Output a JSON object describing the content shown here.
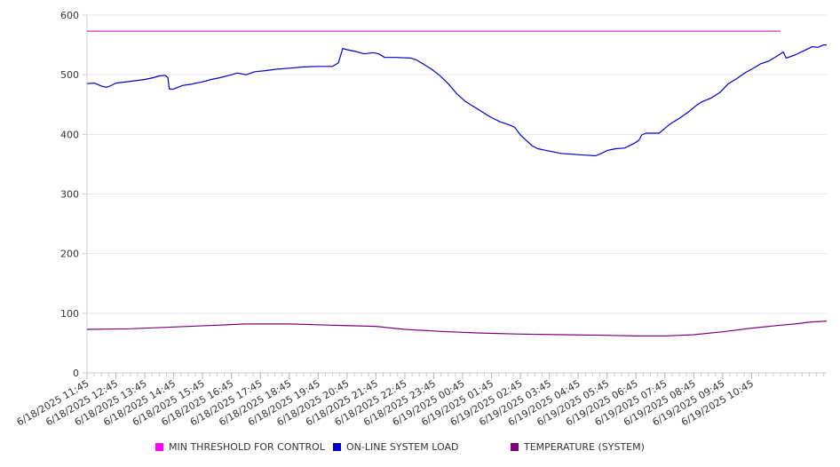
{
  "chart_data": {
    "type": "line",
    "title": "",
    "xlabel": "",
    "ylabel": "",
    "ylim": [
      0,
      600
    ],
    "y_ticks": [
      0,
      100,
      200,
      300,
      400,
      500,
      600
    ],
    "grid": "horizontal",
    "legend_position": "bottom",
    "x_tick_labels": [
      "6/18/2025 11:45",
      "6/18/2025 12:45",
      "6/18/2025 13:45",
      "6/18/2025 14:45",
      "6/18/2025 15:45",
      "6/18/2025 16:45",
      "6/18/2025 17:45",
      "6/18/2025 18:45",
      "6/18/2025 19:45",
      "6/18/2025 20:45",
      "6/18/2025 21:45",
      "6/18/2025 22:45",
      "6/18/2025 23:45",
      "6/19/2025 00:45",
      "6/19/2025 01:45",
      "6/19/2025 02:45",
      "6/19/2025 03:45",
      "6/19/2025 04:45",
      "6/19/2025 05:45",
      "6/19/2025 06:45",
      "6/19/2025 07:45",
      "6/19/2025 08:45",
      "6/19/2025 09:45",
      "6/19/2025 10:45"
    ],
    "x_hours_start": "6/18/2025 11:45",
    "series": [
      {
        "name": "MIN THRESHOLD FOR CONTROL",
        "color": "#cc33cc",
        "points": [
          [
            0,
            573
          ],
          [
            24,
            573
          ]
        ]
      },
      {
        "name": "ON-LINE SYSTEM LOAD",
        "color": "#0000cc",
        "points": [
          [
            0,
            485
          ],
          [
            0.25,
            486
          ],
          [
            0.5,
            481
          ],
          [
            0.65,
            479
          ],
          [
            0.8,
            481
          ],
          [
            1.0,
            486
          ],
          [
            1.5,
            489
          ],
          [
            2.0,
            492
          ],
          [
            2.3,
            495
          ],
          [
            2.5,
            498
          ],
          [
            2.7,
            499
          ],
          [
            2.8,
            495
          ],
          [
            2.85,
            476
          ],
          [
            3.0,
            476
          ],
          [
            3.3,
            482
          ],
          [
            3.6,
            484
          ],
          [
            4.0,
            488
          ],
          [
            4.3,
            492
          ],
          [
            4.6,
            495
          ],
          [
            5.0,
            500
          ],
          [
            5.2,
            503
          ],
          [
            5.5,
            500
          ],
          [
            5.8,
            505
          ],
          [
            6.2,
            507
          ],
          [
            6.5,
            509
          ],
          [
            7.0,
            511
          ],
          [
            7.5,
            513
          ],
          [
            8.0,
            514
          ],
          [
            8.5,
            514
          ],
          [
            8.7,
            520
          ],
          [
            8.85,
            544
          ],
          [
            9.0,
            542
          ],
          [
            9.3,
            539
          ],
          [
            9.6,
            535
          ],
          [
            9.9,
            537
          ],
          [
            10.1,
            535
          ],
          [
            10.3,
            529
          ],
          [
            10.7,
            529
          ],
          [
            11.2,
            528
          ],
          [
            11.4,
            525
          ],
          [
            11.6,
            519
          ],
          [
            11.9,
            510
          ],
          [
            12.2,
            499
          ],
          [
            12.5,
            485
          ],
          [
            12.8,
            468
          ],
          [
            13.1,
            455
          ],
          [
            13.4,
            446
          ],
          [
            13.7,
            437
          ],
          [
            14.0,
            428
          ],
          [
            14.3,
            421
          ],
          [
            14.6,
            416
          ],
          [
            14.8,
            412
          ],
          [
            15.0,
            399
          ],
          [
            15.2,
            390
          ],
          [
            15.4,
            381
          ],
          [
            15.6,
            376
          ],
          [
            15.8,
            374
          ],
          [
            16.1,
            371
          ],
          [
            16.4,
            368
          ],
          [
            16.7,
            367
          ],
          [
            17.0,
            366
          ],
          [
            17.3,
            365
          ],
          [
            17.6,
            364
          ],
          [
            17.8,
            368
          ],
          [
            18.0,
            373
          ],
          [
            18.3,
            376
          ],
          [
            18.6,
            377
          ],
          [
            18.9,
            384
          ],
          [
            19.1,
            390
          ],
          [
            19.2,
            399
          ],
          [
            19.35,
            402
          ],
          [
            19.6,
            402
          ],
          [
            19.8,
            402
          ],
          [
            20.0,
            410
          ],
          [
            20.2,
            418
          ],
          [
            20.5,
            427
          ],
          [
            20.8,
            437
          ],
          [
            21.1,
            449
          ],
          [
            21.3,
            455
          ],
          [
            21.6,
            461
          ],
          [
            21.9,
            470
          ],
          [
            22.2,
            485
          ],
          [
            22.5,
            494
          ],
          [
            22.8,
            504
          ],
          [
            23.1,
            512
          ],
          [
            23.3,
            518
          ],
          [
            23.6,
            523
          ],
          [
            23.9,
            532
          ],
          [
            24.1,
            538
          ],
          [
            24.2,
            528
          ],
          [
            24.5,
            533
          ],
          [
            24.8,
            540
          ],
          [
            25.1,
            547
          ],
          [
            25.3,
            546
          ],
          [
            25.5,
            550
          ],
          [
            25.6,
            550
          ]
        ]
      },
      {
        "name": "TEMPERATURE (SYSTEM)",
        "color": "#800080",
        "points": [
          [
            0,
            73
          ],
          [
            1.5,
            74
          ],
          [
            3,
            77
          ],
          [
            4.5,
            80
          ],
          [
            5.5,
            82
          ],
          [
            7,
            82
          ],
          [
            8.5,
            80
          ],
          [
            10,
            78
          ],
          [
            11,
            73
          ],
          [
            12.5,
            69
          ],
          [
            13.5,
            67
          ],
          [
            15,
            65
          ],
          [
            16.5,
            64
          ],
          [
            18,
            63
          ],
          [
            19,
            62
          ],
          [
            20,
            62
          ],
          [
            21,
            64
          ],
          [
            22,
            69
          ],
          [
            23,
            75
          ],
          [
            24,
            80
          ],
          [
            24.5,
            82
          ],
          [
            25,
            85
          ],
          [
            25.6,
            87
          ]
        ]
      }
    ]
  }
}
